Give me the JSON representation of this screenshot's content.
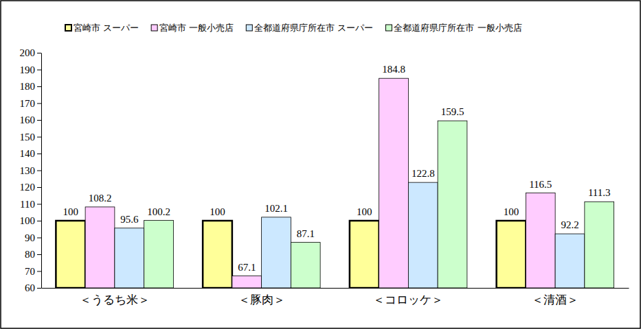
{
  "chart_data": {
    "type": "bar",
    "categories": [
      "＜うるち米＞",
      "＜豚肉＞",
      "＜コロッケ＞",
      "＜清酒＞"
    ],
    "series": [
      {
        "name": "宮崎市 スーパー",
        "color": "#ffff99",
        "values": [
          100,
          100,
          100,
          100
        ]
      },
      {
        "name": "宮崎市 一般小売店",
        "color": "#ffccff",
        "values": [
          108.2,
          67.1,
          184.8,
          116.5
        ]
      },
      {
        "name": "全都道府県庁所在市 スーパー",
        "color": "#cce8ff",
        "values": [
          95.6,
          102.1,
          122.8,
          92.2
        ]
      },
      {
        "name": "全都道府県庁所在市 一般小売店",
        "color": "#ccffcc",
        "values": [
          100.2,
          87.1,
          159.5,
          111.3
        ]
      }
    ],
    "ylim": [
      60,
      200
    ],
    "yticks": [
      60,
      70,
      80,
      90,
      100,
      110,
      120,
      130,
      140,
      150,
      160,
      170,
      180,
      190,
      200
    ],
    "grid": false,
    "legend": "top",
    "data_labels": true
  }
}
